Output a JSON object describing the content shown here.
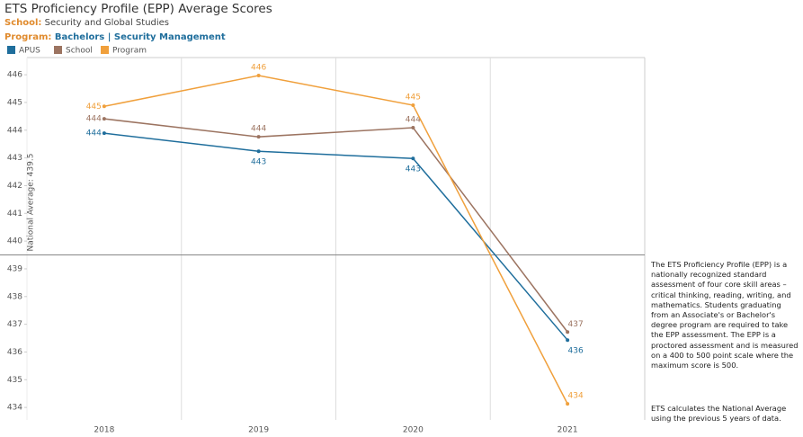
{
  "chart_data": {
    "type": "line",
    "title": "ETS Proficiency Profile (EPP) Average Scores",
    "school_label": "School:",
    "school": "Security and Global Studies",
    "program_label": "Program:",
    "program": "Bachelors | Security Management",
    "categories": [
      "2018",
      "2019",
      "2020",
      "2021"
    ],
    "series": [
      {
        "name": "APUS",
        "color": "#1f6e9c",
        "values": [
          443.89,
          443.24,
          442.98,
          436.43
        ],
        "value_labels": [
          "444",
          "443",
          "443",
          "436"
        ]
      },
      {
        "name": "School",
        "color": "#9c7461",
        "values": [
          444.41,
          443.76,
          444.09,
          436.72
        ],
        "value_labels": [
          "444",
          "444",
          "444",
          "437"
        ]
      },
      {
        "name": "Program",
        "color": "#f0a03c",
        "values": [
          444.86,
          445.97,
          444.9,
          434.13
        ],
        "value_labels": [
          "445",
          "446",
          "445",
          "434"
        ]
      }
    ],
    "ylim": [
      433.55,
      446.62
    ],
    "yticks": [
      434,
      435,
      436,
      437,
      438,
      439,
      440,
      441,
      442,
      443,
      444,
      445,
      446
    ],
    "reference_line": {
      "value": 439.5,
      "label": "National Average: 439.5"
    },
    "notes": [
      "The ETS Proficiency Profile (EPP) is a nationally recognized standard assessment of four core skill areas – critical thinking, reading, writing, and mathematics.  Students graduating from an Associate's or Bachelor's degree program are required to take the EPP assessment.  The EPP is a proctored assessment and is measured on a 400 to 500 point scale where the maximum score is 500.",
      "ETS calculates the National Average using the previous 5 years of data."
    ]
  }
}
